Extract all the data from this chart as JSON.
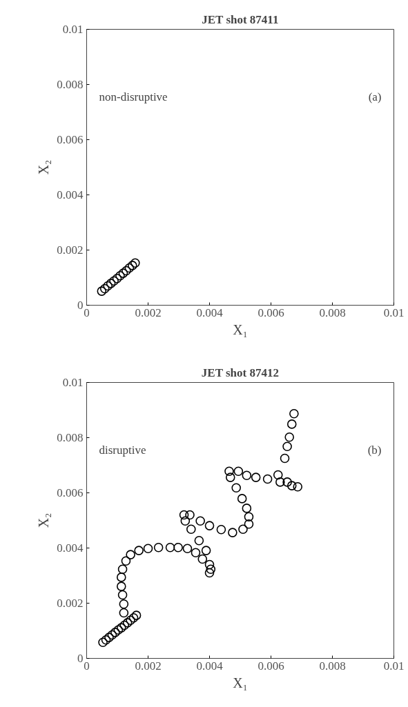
{
  "chart_data": [
    {
      "type": "scatter",
      "title": "JET shot 87411",
      "xlabel": "X₁",
      "ylabel": "X₂",
      "annotations": [
        "non-disruptive",
        "(a)"
      ],
      "marker": "circle",
      "grid": false,
      "xlim": [
        0,
        0.01
      ],
      "ylim": [
        0,
        0.01
      ],
      "xticks": [
        0,
        0.002,
        0.004,
        0.006,
        0.008,
        0.01
      ],
      "yticks": [
        0,
        0.002,
        0.004,
        0.006,
        0.008,
        0.01
      ],
      "series": [
        {
          "color": "#000000",
          "x": [
            0.00049,
            0.00059,
            0.00069,
            0.00079,
            0.00089,
            0.00099,
            0.00109,
            0.00119,
            0.00129,
            0.00139,
            0.00149,
            0.00158
          ],
          "values": [
            0.00051,
            0.0006,
            0.0007,
            0.00079,
            0.00088,
            0.00097,
            0.00107,
            0.00116,
            0.00125,
            0.00135,
            0.00144,
            0.00153
          ]
        }
      ]
    },
    {
      "type": "scatter",
      "title": "JET shot 87412",
      "xlabel": "X₁",
      "ylabel": "X₂",
      "annotations": [
        "disruptive",
        "(b)"
      ],
      "marker": "circle",
      "grid": false,
      "xlim": [
        0,
        0.01
      ],
      "ylim": [
        0,
        0.01
      ],
      "xticks": [
        0,
        0.002,
        0.004,
        0.006,
        0.008,
        0.01
      ],
      "yticks": [
        0,
        0.002,
        0.004,
        0.006,
        0.008,
        0.01
      ],
      "series": [
        {
          "color": "#000000",
          "x": [
            0.00053,
            0.00063,
            0.00073,
            0.00083,
            0.00093,
            0.00103,
            0.00113,
            0.00123,
            0.00133,
            0.00143,
            0.00153,
            0.00162
          ],
          "values": [
            0.00058,
            0.00067,
            0.00076,
            0.00085,
            0.00094,
            0.00103,
            0.00111,
            0.0012,
            0.00129,
            0.00138,
            0.00147,
            0.00156
          ]
        },
        {
          "color": "#000000",
          "x": [
            0.00121,
            0.00121,
            0.00117,
            0.00113,
            0.00113,
            0.00117,
            0.00128,
            0.00143,
            0.0017,
            0.002,
            0.00234,
            0.00272,
            0.00298,
            0.00328,
            0.00355,
            0.00377,
            0.004,
            0.00404,
            0.004,
            0.00389,
            0.00366,
            0.0034,
            0.00321,
            0.00317,
            0.00336,
            0.0037,
            0.004,
            0.00438,
            0.00475,
            0.00509,
            0.00528,
            0.00528,
            0.00521,
            0.00506,
            0.00487,
            0.00468,
            0.00464,
            0.00494,
            0.00521,
            0.00551,
            0.00589,
            0.00623,
            0.0063,
            0.00653,
            0.00668,
            0.00687,
            0.00645,
            0.00653,
            0.0066,
            0.00668,
            0.00675
          ],
          "values": [
            0.00165,
            0.00197,
            0.0023,
            0.00261,
            0.00294,
            0.00323,
            0.00353,
            0.00376,
            0.00391,
            0.00398,
            0.00402,
            0.00402,
            0.00402,
            0.00398,
            0.00383,
            0.0036,
            0.0034,
            0.00323,
            0.0031,
            0.00391,
            0.00427,
            0.00468,
            0.00498,
            0.0052,
            0.0052,
            0.00498,
            0.00481,
            0.00467,
            0.00456,
            0.00468,
            0.00487,
            0.00513,
            0.00544,
            0.00579,
            0.00618,
            0.00656,
            0.00678,
            0.00678,
            0.00663,
            0.00656,
            0.0065,
            0.00665,
            0.00639,
            0.00639,
            0.00626,
            0.00622,
            0.00725,
            0.00768,
            0.00802,
            0.00849,
            0.00887
          ]
        }
      ]
    }
  ]
}
